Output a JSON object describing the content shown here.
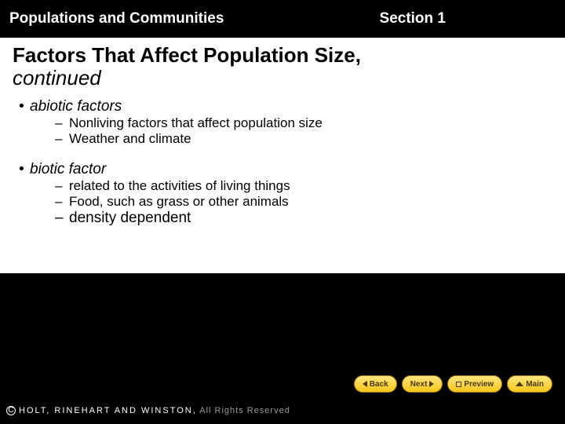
{
  "header": {
    "left_title": "Populations and Communities",
    "right_title": "Section 1"
  },
  "content": {
    "title_main": "Factors That Affect Population Size,",
    "title_cont": "continued",
    "bullets": {
      "b1": "abiotic factors",
      "b1_sub1": "Nonliving factors that affect population size",
      "b1_sub2": "Weather and climate",
      "b2": "biotic factor",
      "b2_sub1": "related to the activities of living things",
      "b2_sub2": "Food, such as grass or other animals",
      "b2_sub3": "density dependent"
    }
  },
  "nav": {
    "back": "Back",
    "next": "Next",
    "preview": "Preview",
    "main": "Main"
  },
  "footer": {
    "publisher": "HOLT, RINEHART AND WINSTON,",
    "rights": " All Rights Reserved"
  },
  "colors": {
    "black": "#000000",
    "white": "#ffffff",
    "button_gradient_top": "#ffe680",
    "button_gradient_bottom": "#f5c518",
    "button_border": "#a07a1a",
    "button_text": "#4a3a0a",
    "grey_text": "#9a9a9a"
  }
}
